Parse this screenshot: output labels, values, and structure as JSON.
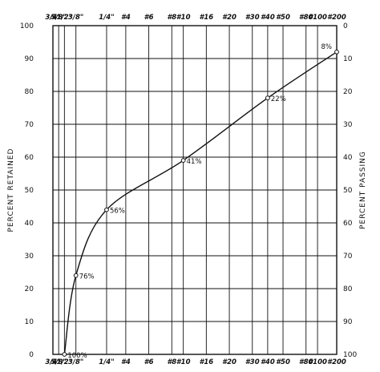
{
  "chart_data": {
    "type": "line",
    "title": "",
    "ylabel_left": "PERCENT RETAINED",
    "ylabel_right": "PERCENT PASSING",
    "xlabel": "",
    "y_ticks_left": [
      "0",
      "10",
      "20",
      "30",
      "40",
      "50",
      "60",
      "70",
      "80",
      "90",
      "100"
    ],
    "y_ticks_right": [
      "100",
      "90",
      "80",
      "70",
      "60",
      "50",
      "40",
      "30",
      "20",
      "10",
      "0"
    ],
    "ylim": [
      0,
      100
    ],
    "grid": true,
    "sieves": [
      {
        "label": "3/4\"",
        "x": 0.0
      },
      {
        "label": "5/8\"",
        "x": 0.75
      },
      {
        "label": "1/2\"",
        "x": 1.5
      },
      {
        "label": "3/8\"",
        "x": 3.0
      },
      {
        "label": "1/4\"",
        "x": 7.0
      },
      {
        "label": "#4",
        "x": 9.5
      },
      {
        "label": "#6",
        "x": 12.5
      },
      {
        "label": "#8",
        "x": 15.5
      },
      {
        "label": "#10",
        "x": 17.0
      },
      {
        "label": "#16",
        "x": 20.0
      },
      {
        "label": "#20",
        "x": 23.0
      },
      {
        "label": "#30",
        "x": 26.0
      },
      {
        "label": "#40",
        "x": 28.0
      },
      {
        "label": "#50",
        "x": 30.0
      },
      {
        "label": "#80",
        "x": 33.0
      },
      {
        "label": "#100",
        "x": 34.5
      },
      {
        "label": "#200",
        "x": 37.0
      }
    ],
    "x_range": [
      0,
      37
    ],
    "series": [
      {
        "points": [
          {
            "sieve": "1/2\"",
            "x": 1.5,
            "retained": 0,
            "label": "100%"
          },
          {
            "sieve": "3/8\"",
            "x": 3.0,
            "retained": 24,
            "label": "76%"
          },
          {
            "sieve": "1/4\"",
            "x": 7.0,
            "retained": 44,
            "label": "56%"
          },
          {
            "sieve": "#10",
            "x": 17.0,
            "retained": 59,
            "label": "41%"
          },
          {
            "sieve": "#40",
            "x": 28.0,
            "retained": 78,
            "label": "22%"
          },
          {
            "sieve": "#200",
            "x": 37.0,
            "retained": 92,
            "label": "8%"
          }
        ]
      }
    ]
  }
}
